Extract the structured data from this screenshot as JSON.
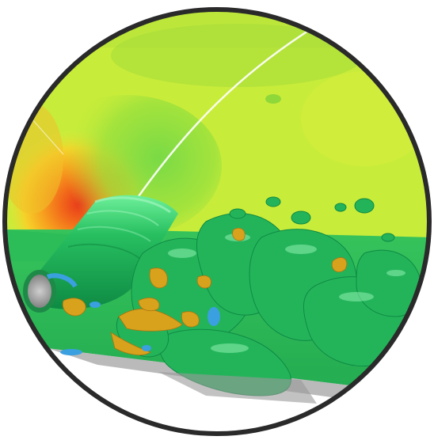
{
  "image": {
    "subject": "cfd-flow-visualization",
    "colors": {
      "border": "#2a2a2a",
      "background_yellow": "#c8ec3a",
      "background_green": "#2fbf5a",
      "vortex_green": "#23b45a",
      "vortex_highlight": "#8ff0b0",
      "stagnation_red": "#e83a1a",
      "orange": "#f79a1e",
      "gold": "#d9a21c",
      "blue": "#3aa0e0",
      "cylinder_gray": "#9a9a9a"
    }
  }
}
